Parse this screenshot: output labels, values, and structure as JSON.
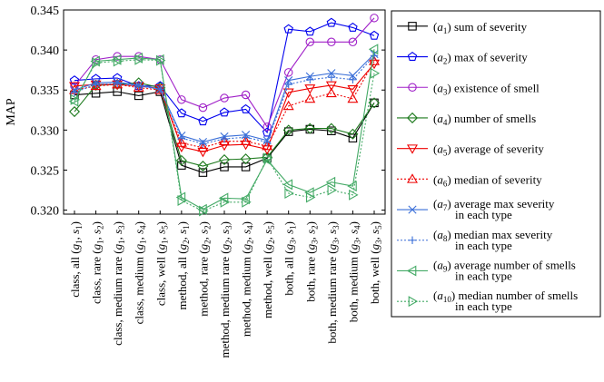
{
  "chart_data": {
    "type": "line",
    "ylabel": "MAP",
    "xlabel": "",
    "ylim": [
      0.3195,
      0.345
    ],
    "yticks": [
      0.32,
      0.325,
      0.33,
      0.335,
      0.34,
      0.345
    ],
    "ytick_labels": [
      "0.320",
      "0.325",
      "0.330",
      "0.335",
      "0.340",
      "0.345"
    ],
    "grid": false,
    "legend_position": "right",
    "categories": [
      {
        "prefix": "class, all",
        "g": "1",
        "s": "1"
      },
      {
        "prefix": "class, rare",
        "g": "1",
        "s": "2"
      },
      {
        "prefix": "class, medium rare",
        "g": "1",
        "s": "3"
      },
      {
        "prefix": "class, medium",
        "g": "1",
        "s": "4"
      },
      {
        "prefix": "class, well",
        "g": "1",
        "s": "5"
      },
      {
        "prefix": "method, all",
        "g": "2",
        "s": "1"
      },
      {
        "prefix": "method, rare",
        "g": "2",
        "s": "2"
      },
      {
        "prefix": "method, medium rare",
        "g": "2",
        "s": "3"
      },
      {
        "prefix": "method, medium",
        "g": "2",
        "s": "4"
      },
      {
        "prefix": "method, well",
        "g": "2",
        "s": "5"
      },
      {
        "prefix": "both, all",
        "g": "3",
        "s": "1"
      },
      {
        "prefix": "both, rare",
        "g": "3",
        "s": "2"
      },
      {
        "prefix": "both, medium rare",
        "g": "3",
        "s": "3"
      },
      {
        "prefix": "both, medium",
        "g": "3",
        "s": "4"
      },
      {
        "prefix": "both, well",
        "g": "3",
        "s": "5"
      }
    ],
    "series": [
      {
        "id": "1",
        "lines": [
          "sum of severity"
        ],
        "color": "#000000",
        "marker": "square",
        "dash": false,
        "values": [
          0.3344,
          0.3346,
          0.3348,
          0.3343,
          0.3348,
          0.3256,
          0.3247,
          0.3254,
          0.3254,
          0.3265,
          0.3298,
          0.3301,
          0.3299,
          0.329,
          0.3334
        ]
      },
      {
        "id": "2",
        "lines": [
          "max of severity"
        ],
        "color": "#0000ee",
        "marker": "pentagon",
        "dash": false,
        "values": [
          0.3362,
          0.3364,
          0.3365,
          0.3355,
          0.3355,
          0.3321,
          0.3311,
          0.3322,
          0.3326,
          0.3297,
          0.3426,
          0.3423,
          0.3434,
          0.3428,
          0.3418
        ]
      },
      {
        "id": "3",
        "lines": [
          "existence of smell"
        ],
        "color": "#a020c8",
        "marker": "circle",
        "dash": false,
        "values": [
          0.3355,
          0.3388,
          0.3392,
          0.3392,
          0.3388,
          0.3338,
          0.3328,
          0.334,
          0.3344,
          0.3304,
          0.3372,
          0.341,
          0.341,
          0.341,
          0.344
        ]
      },
      {
        "id": "4",
        "lines": [
          "number of smells"
        ],
        "color": "#1e7a1e",
        "marker": "diamond",
        "dash": false,
        "values": [
          0.3323,
          0.3356,
          0.3357,
          0.3359,
          0.3353,
          0.3262,
          0.3255,
          0.3263,
          0.3264,
          0.3266,
          0.33,
          0.3302,
          0.3302,
          0.3295,
          0.3334
        ]
      },
      {
        "id": "5",
        "lines": [
          "average of severity"
        ],
        "color": "#ee0000",
        "marker": "triangle-down",
        "dash": false,
        "values": [
          0.3355,
          0.3357,
          0.3357,
          0.3355,
          0.3352,
          0.3279,
          0.3273,
          0.3281,
          0.3282,
          0.3276,
          0.3347,
          0.3352,
          0.3356,
          0.3351,
          0.3383
        ]
      },
      {
        "id": "6",
        "lines": [
          "median of severity"
        ],
        "color": "#ee0000",
        "marker": "triangle-up",
        "dash": true,
        "values": [
          0.335,
          0.3355,
          0.3357,
          0.3353,
          0.335,
          0.3284,
          0.3278,
          0.3286,
          0.3286,
          0.328,
          0.333,
          0.3339,
          0.3346,
          0.3339,
          0.3386
        ]
      },
      {
        "id": "7",
        "lines": [
          "average max severity",
          "in each type"
        ],
        "color": "#3a6fd8",
        "marker": "x",
        "dash": false,
        "values": [
          0.335,
          0.3359,
          0.336,
          0.3356,
          0.3351,
          0.3293,
          0.3285,
          0.3292,
          0.3294,
          0.3287,
          0.3362,
          0.3367,
          0.3371,
          0.3368,
          0.3395
        ]
      },
      {
        "id": "8",
        "lines": [
          "median max severity",
          "in each type"
        ],
        "color": "#3a6fd8",
        "marker": "plus",
        "dash": true,
        "values": [
          0.3347,
          0.3357,
          0.3358,
          0.3355,
          0.3351,
          0.329,
          0.3283,
          0.3289,
          0.3291,
          0.3285,
          0.3357,
          0.3363,
          0.3366,
          0.3363,
          0.3393
        ]
      },
      {
        "id": "9",
        "lines": [
          "average number of smells",
          "in each type"
        ],
        "color": "#44aa66",
        "marker": "triangle-left",
        "dash": false,
        "values": [
          0.3336,
          0.3386,
          0.3388,
          0.339,
          0.3388,
          0.3216,
          0.3201,
          0.3215,
          0.3214,
          0.3263,
          0.3232,
          0.3222,
          0.3235,
          0.323,
          0.3401
        ]
      },
      {
        "id": "10",
        "lines": [
          "median number of smells",
          "in each type"
        ],
        "color": "#44aa66",
        "marker": "triangle-right",
        "dash": true,
        "values": [
          0.3338,
          0.3384,
          0.3386,
          0.3388,
          0.3387,
          0.3212,
          0.3199,
          0.321,
          0.321,
          0.3265,
          0.3221,
          0.3216,
          0.3225,
          0.3219,
          0.3371
        ]
      }
    ]
  }
}
